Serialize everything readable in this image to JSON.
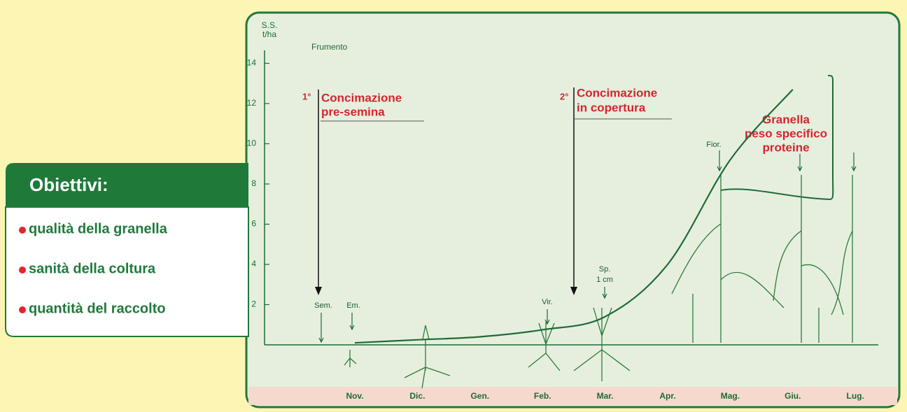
{
  "chart_data": {
    "type": "line",
    "y_label_line1": "S.S.",
    "y_label_line2": "t/ha",
    "crop": "Frumento",
    "categories": [
      "Nov.",
      "Dic.",
      "Gen.",
      "Feb.",
      "Mar.",
      "Apr.",
      "Mag.",
      "Giu.",
      "Lug."
    ],
    "series": [
      {
        "color": "#1f6b35",
        "values": [
          0.1,
          0.25,
          0.4,
          0.75,
          1.4,
          4,
          9.2,
          12.7,
          null
        ]
      }
    ],
    "ylim": [
      0,
      14.5
    ],
    "yticks": [
      2,
      4,
      6,
      8,
      10,
      12,
      14
    ],
    "annotations": {
      "first_num": "1°",
      "first_l1": "Concimazione",
      "first_l2": "pre-semina",
      "second_num": "2°",
      "second_l1": "Concimazione",
      "second_l2": "in copertura",
      "grain_l1": "Granella",
      "grain_l2": "peso specifico",
      "grain_l3": "proteine",
      "sem": "Sem.",
      "em": "Em.",
      "vir": "Vir.",
      "sp_l1": "Sp.",
      "sp_l2": "1 cm",
      "fior": "Fior."
    }
  },
  "objectives": {
    "title": "Obiettivi:",
    "items": [
      "qualità della granella",
      "sanità della coltura",
      "quantità del raccolto"
    ]
  }
}
